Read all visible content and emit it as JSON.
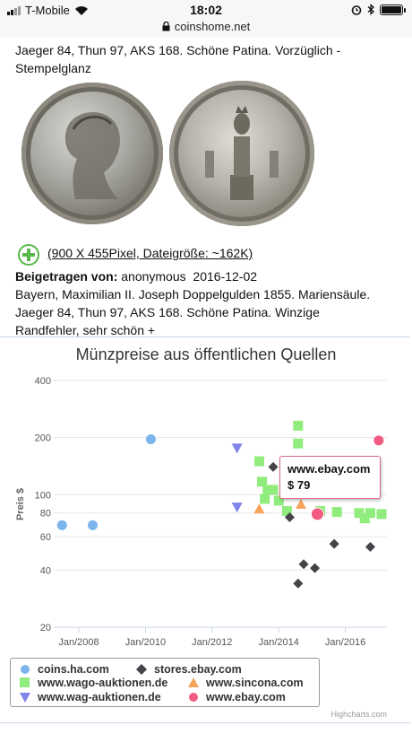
{
  "status_bar": {
    "carrier": "T-Mobile",
    "time": "18:02"
  },
  "url_bar": {
    "domain": "coinshome.net"
  },
  "card_top": {
    "text_line1": "Jaeger 84, Thun 97, AKS 168. Schöne Patina. Vorzüglich -",
    "text_line2": "Stempelglanz"
  },
  "image_info": {
    "size_text": "(900 X 455Pixel, Dateigröße: ~162K)"
  },
  "contribution": {
    "label": "Beigetragen von:",
    "author": "anonymous",
    "date": "2016-12-02",
    "line1": "Bayern, Maximilian II. Joseph Doppelgulden 1855. Mariensäule.",
    "line2": "Jaeger 84, Thun 97, AKS 168. Schöne Patina. Winzige",
    "line3": "Randfehler, sehr schön +"
  },
  "tooltip": {
    "source": "www.ebay.com",
    "price": "$ 79"
  },
  "credits": "Highcharts.com",
  "colors": {
    "coins_ha": "#7cb5ec",
    "stores_ebay": "#434348",
    "wago": "#90ed7d",
    "sincona": "#f7a35c",
    "wag": "#8085e9",
    "ebay": "#f15c80",
    "border": "#c8d4e6"
  },
  "chart_data": {
    "type": "scatter",
    "title": "Münzpreise aus öffentlichen Quellen",
    "ylabel": "Preis $",
    "y_scale": "log",
    "ylim": [
      20,
      400
    ],
    "y_ticks": [
      20,
      40,
      60,
      80,
      100,
      200,
      400
    ],
    "x_ticks": [
      "Jan/2008",
      "Jan/2010",
      "Jan/2012",
      "Jan/2014",
      "Jan/2016"
    ],
    "xlim": [
      "2007-04-01",
      "2017-04-01"
    ],
    "legend_position": "bottom-left",
    "series": [
      {
        "name": "coins.ha.com",
        "marker": "circle",
        "points": [
          [
            "2007-07-01",
            69
          ],
          [
            "2008-06-01",
            69
          ],
          [
            "2010-03-01",
            196
          ]
        ]
      },
      {
        "name": "stores.ebay.com",
        "marker": "diamond",
        "points": [
          [
            "2014-05-01",
            76
          ],
          [
            "2013-11-01",
            140
          ],
          [
            "2014-08-01",
            34
          ],
          [
            "2014-10-01",
            43
          ],
          [
            "2015-02-01",
            41
          ],
          [
            "2015-09-01",
            55
          ],
          [
            "2016-10-01",
            53
          ]
        ]
      },
      {
        "name": "www.wago-auktionen.de",
        "marker": "square",
        "points": [
          [
            "2013-06-01",
            150
          ],
          [
            "2013-07-01",
            117
          ],
          [
            "2013-08-01",
            95
          ],
          [
            "2013-09-01",
            106
          ],
          [
            "2013-11-01",
            106
          ],
          [
            "2014-01-01",
            93
          ],
          [
            "2014-04-01",
            82
          ],
          [
            "2014-08-01",
            231
          ],
          [
            "2014-08-01",
            186
          ],
          [
            "2015-04-01",
            82
          ],
          [
            "2015-07-01",
            118
          ],
          [
            "2015-10-01",
            81
          ],
          [
            "2016-04-01",
            115
          ],
          [
            "2016-06-01",
            80
          ],
          [
            "2016-08-01",
            75
          ],
          [
            "2016-10-01",
            80
          ],
          [
            "2016-12-01",
            117
          ],
          [
            "2017-02-01",
            79
          ]
        ]
      },
      {
        "name": "www.sincona.com",
        "marker": "triangle",
        "points": [
          [
            "2013-06-01",
            84
          ],
          [
            "2014-09-01",
            89
          ]
        ]
      },
      {
        "name": "www.wag-auktionen.de",
        "marker": "triangle-down",
        "points": [
          [
            "2012-10-01",
            176
          ],
          [
            "2012-10-01",
            86
          ]
        ]
      },
      {
        "name": "www.ebay.com",
        "marker": "circle",
        "points": [
          [
            "2015-03-01",
            79
          ],
          [
            "2017-01-01",
            193
          ]
        ]
      }
    ]
  }
}
